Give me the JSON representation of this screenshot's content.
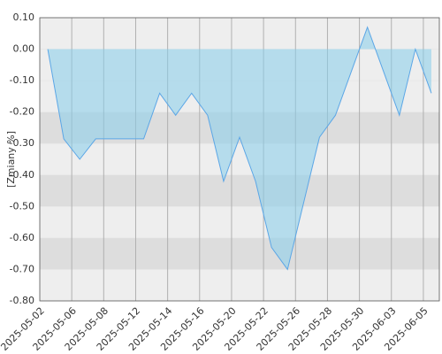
{
  "chart_data": {
    "type": "area",
    "y_label": "[Zmiany %]",
    "categories": [
      "2025-05-02",
      null,
      "2025-05-06",
      null,
      "2025-05-08",
      null,
      "2025-05-12",
      null,
      "2025-05-14",
      null,
      "2025-05-16",
      null,
      "2025-05-20",
      null,
      "2025-05-22",
      null,
      "2025-05-26",
      null,
      "2025-05-28",
      null,
      "2025-05-30",
      null,
      "2025-06-03",
      null,
      "2025-06-05"
    ],
    "values": [
      0.0,
      -0.285,
      -0.35,
      -0.285,
      -0.285,
      -0.285,
      -0.285,
      -0.14,
      -0.21,
      -0.14,
      -0.21,
      -0.42,
      -0.28,
      -0.42,
      -0.63,
      -0.7,
      -0.49,
      -0.28,
      -0.21,
      -0.07,
      0.07,
      -0.07,
      -0.21,
      0.0,
      -0.14
    ],
    "color": "#5ba6e6",
    "ylim": [
      -0.8,
      0.1
    ],
    "yticks": [
      {
        "value": 0.1,
        "label": "0.10"
      },
      {
        "value": 0,
        "label": "0.00"
      },
      {
        "value": -0.1,
        "label": "-0.10"
      },
      {
        "value": -0.2,
        "label": "-0.20"
      },
      {
        "value": -0.3,
        "label": "-0.30"
      },
      {
        "value": -0.4,
        "label": "-0.40"
      },
      {
        "value": -0.5,
        "label": "-0.50"
      },
      {
        "value": -0.6,
        "label": "-0.60"
      },
      {
        "value": -0.7,
        "label": "-0.70"
      },
      {
        "value": -0.8,
        "label": "-0.80"
      }
    ],
    "grid": true
  }
}
